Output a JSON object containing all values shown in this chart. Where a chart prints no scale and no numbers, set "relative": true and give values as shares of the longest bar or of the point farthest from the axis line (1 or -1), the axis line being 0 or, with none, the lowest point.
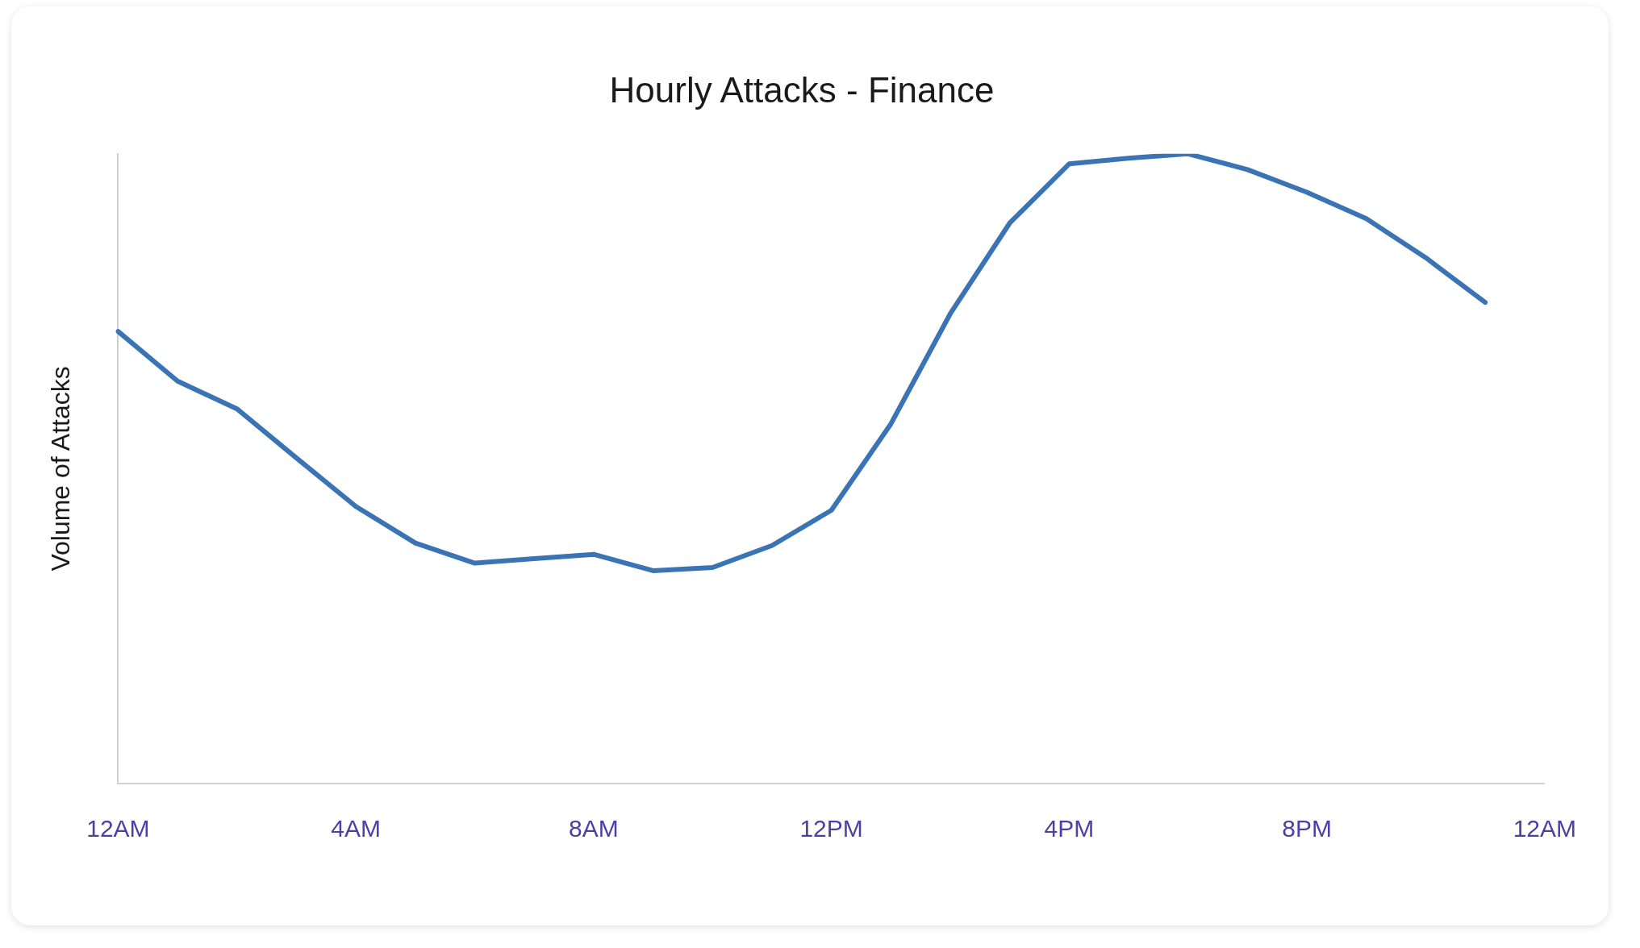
{
  "chart_data": {
    "type": "line",
    "title": "Hourly Attacks - Finance",
    "ylabel": "Volume of Attacks",
    "relative": true,
    "categories": [
      "12AM",
      null,
      null,
      null,
      "4AM",
      null,
      null,
      null,
      "8AM",
      null,
      null,
      null,
      "12PM",
      null,
      null,
      null,
      "4PM",
      null,
      null,
      null,
      "8PM",
      null,
      null,
      null,
      "12AM"
    ],
    "series": [
      {
        "color": "#3a74b4",
        "values": [
          0.718,
          0.639,
          0.595,
          0.517,
          0.44,
          0.382,
          0.35,
          0.357,
          0.364,
          0.338,
          0.343,
          0.378,
          0.434,
          0.571,
          0.746,
          0.89,
          0.984,
          0.993,
          1,
          0.975,
          0.939,
          0.897,
          0.835,
          0.764,
          null
        ]
      }
    ],
    "grid": false,
    "legend": false,
    "marker": "none",
    "line_style": "solid"
  }
}
